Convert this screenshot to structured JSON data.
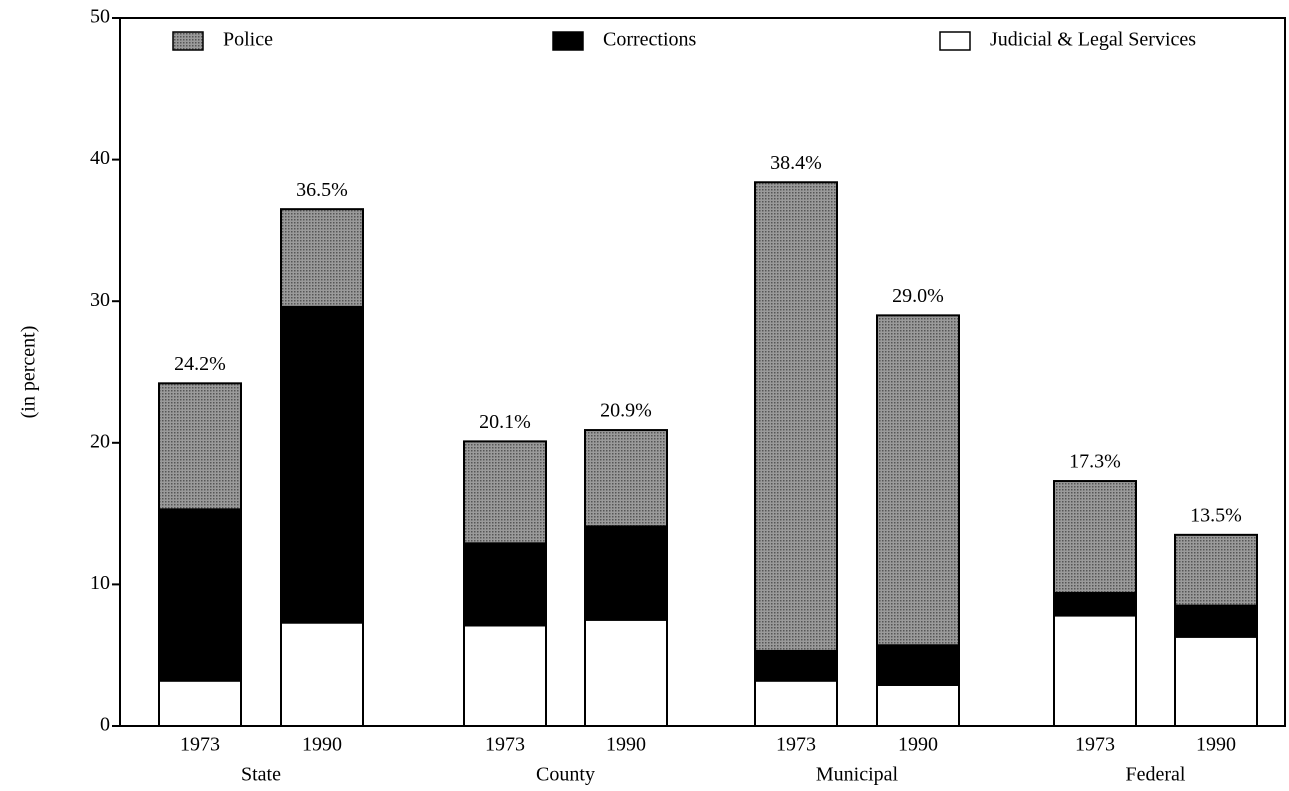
{
  "chart_data": {
    "type": "stacked_bar",
    "y_label": "(in percent)",
    "categories": [
      "1973",
      "1990",
      "1973",
      "1990",
      "1973",
      "1990",
      "1973",
      "1990"
    ],
    "groups": [
      "State",
      "County",
      "Municipal",
      "Federal"
    ],
    "series": [
      {
        "name": "Judicial & Legal Services",
        "color": "#ffffff",
        "values": [
          3.2,
          7.3,
          7.1,
          7.5,
          3.2,
          2.9,
          7.8,
          6.3
        ]
      },
      {
        "name": "Corrections",
        "color": "#000000",
        "values": [
          12.1,
          22.3,
          5.8,
          6.6,
          2.1,
          2.8,
          1.6,
          2.2
        ]
      },
      {
        "name": "Police",
        "color": "#8c8c8c",
        "values": [
          8.9,
          6.9,
          7.2,
          6.8,
          33.1,
          23.3,
          7.9,
          5.0
        ]
      }
    ],
    "total_labels": [
      "24.2%",
      "36.5%",
      "20.1%",
      "20.9%",
      "38.4%",
      "29.0%",
      "17.3%",
      "13.5%"
    ],
    "ylim": [
      0,
      50
    ],
    "yticks": [
      0,
      10,
      20,
      30,
      40,
      50
    ],
    "legend": "top"
  }
}
